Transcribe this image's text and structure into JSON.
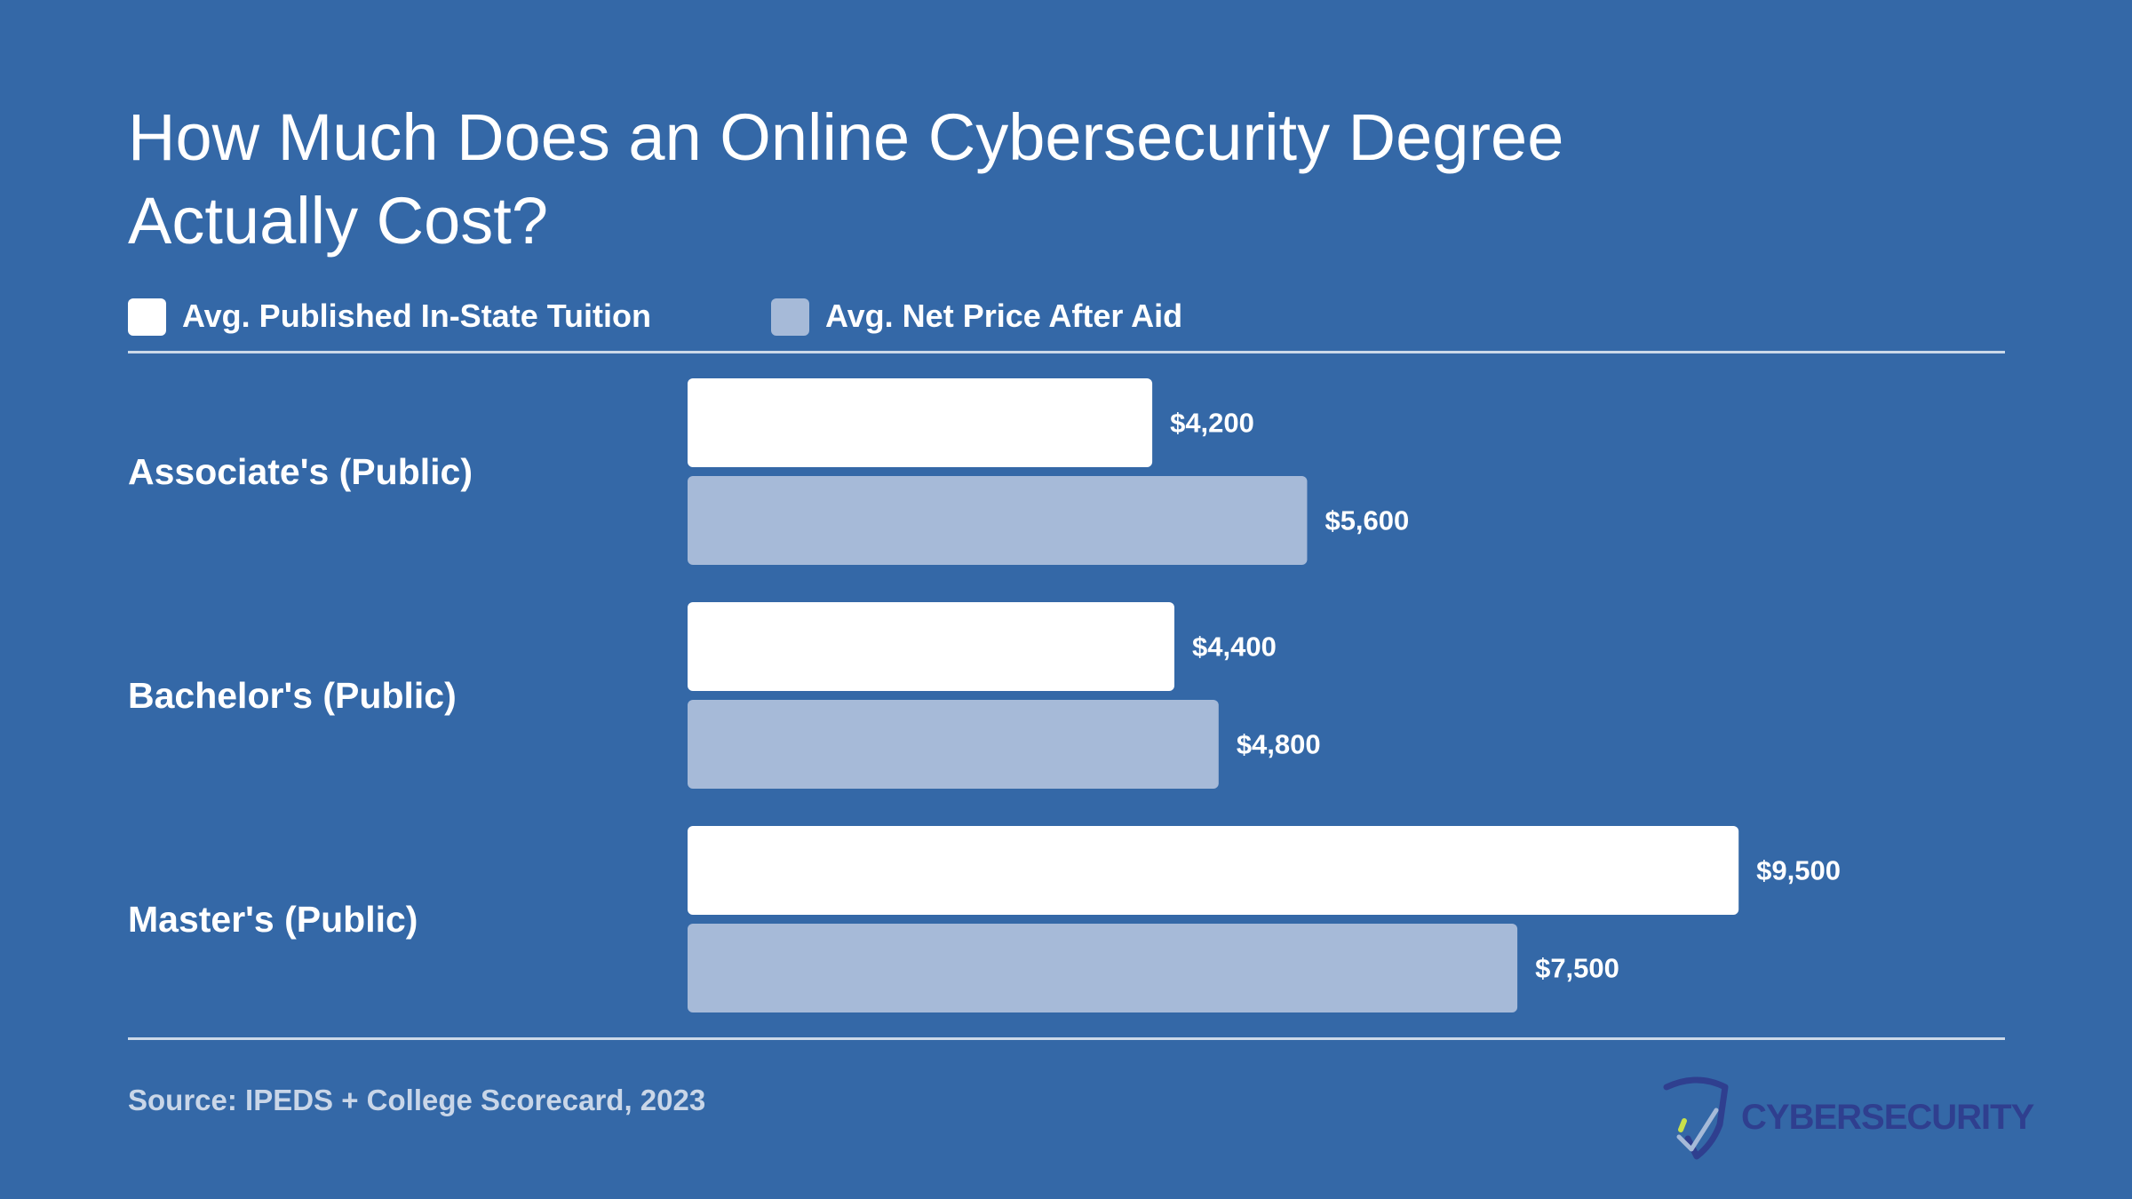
{
  "title_line1": "How Much Does an Online Cybersecurity Degree",
  "title_line2": "Actually Cost?",
  "source": "Source: IPEDS + College Scorecard, 2023",
  "logo_text": "CYBERSECURITY",
  "colors": {
    "background": "#3468a7",
    "tuition": "#ffffff",
    "net_price": "#a6bad8",
    "logo": "#2f3f8f",
    "logo_accent": "#c8e04a"
  },
  "chart_data": {
    "type": "bar",
    "orientation": "horizontal",
    "categories": [
      "Associate's (Public)",
      "Bachelor's (Public)",
      "Master's (Public)"
    ],
    "series": [
      {
        "name": "Avg. Published In-State Tuition",
        "color": "#ffffff",
        "values": [
          4200,
          4400,
          9500
        ],
        "labels": [
          "$4,200",
          "$4,400",
          "$9,500"
        ]
      },
      {
        "name": "Avg. Net Price After Aid",
        "color": "#a6bad8",
        "values": [
          5600,
          4800,
          7500
        ],
        "labels": [
          "$5,600",
          "$4,800",
          "$7,500"
        ]
      }
    ],
    "xlim": [
      0,
      11000
    ],
    "grid": false,
    "legend": "top-left"
  }
}
